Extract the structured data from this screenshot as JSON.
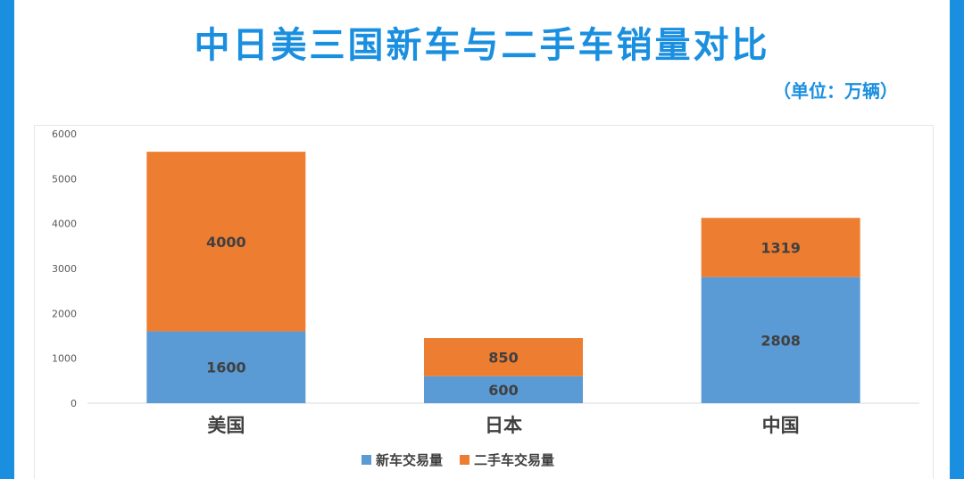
{
  "title": "中日美三国新车与二手车销量对比",
  "unit_note": "（单位：万辆）",
  "colors": {
    "frame": "#1a8fe0",
    "title": "#1a8fe0",
    "new_car": "#5b9bd5",
    "used_car": "#ed7d31"
  },
  "chart_data": {
    "type": "bar",
    "stacked": true,
    "categories": [
      "美国",
      "日本",
      "中国"
    ],
    "series": [
      {
        "name": "新车交易量",
        "values": [
          1600,
          600,
          2808
        ],
        "color": "#5b9bd5"
      },
      {
        "name": "二手车交易量",
        "values": [
          4000,
          850,
          1319
        ],
        "color": "#ed7d31"
      }
    ],
    "ylim": [
      0,
      6000
    ],
    "yticks": [
      "0",
      "1000",
      "2000",
      "3000",
      "4000",
      "5000",
      "6000"
    ],
    "grid": false,
    "legend": "bottom"
  }
}
